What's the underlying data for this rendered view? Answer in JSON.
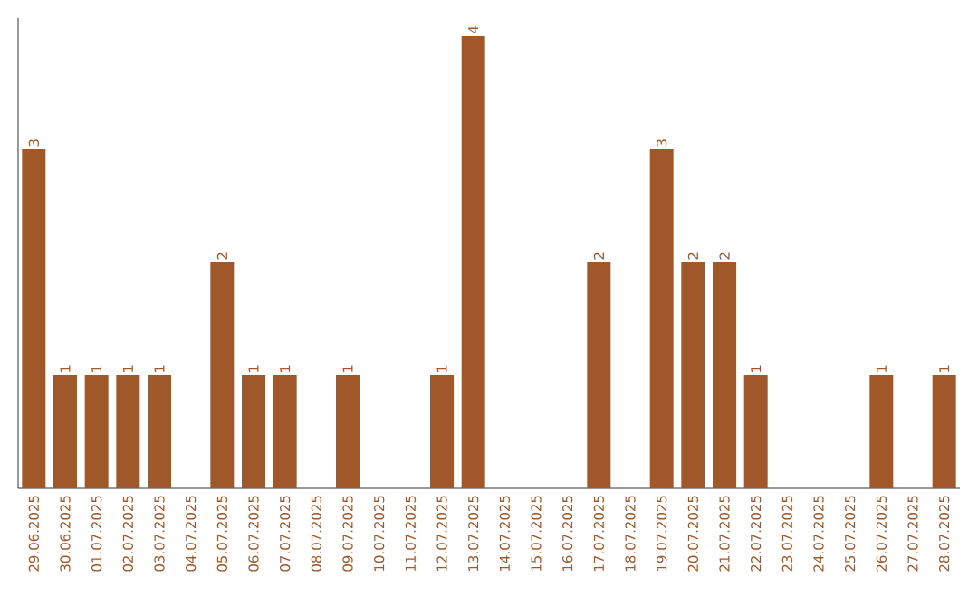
{
  "chart_data": {
    "type": "bar",
    "categories": [
      "29.06.2025",
      "30.06.2025",
      "01.07.2025",
      "02.07.2025",
      "03.07.2025",
      "04.07.2025",
      "05.07.2025",
      "06.07.2025",
      "07.07.2025",
      "08.07.2025",
      "09.07.2025",
      "10.07.2025",
      "11.07.2025",
      "12.07.2025",
      "13.07.2025",
      "14.07.2025",
      "15.07.2025",
      "16.07.2025",
      "17.07.2025",
      "18.07.2025",
      "19.07.2025",
      "20.07.2025",
      "21.07.2025",
      "22.07.2025",
      "23.07.2025",
      "24.07.2025",
      "25.07.2025",
      "26.07.2025",
      "27.07.2025",
      "28.07.2025"
    ],
    "values": [
      3,
      1,
      1,
      1,
      1,
      0,
      2,
      1,
      1,
      0,
      1,
      0,
      0,
      1,
      4,
      0,
      0,
      0,
      2,
      0,
      3,
      2,
      2,
      1,
      0,
      0,
      0,
      1,
      0,
      1
    ],
    "value_labels": [
      "3",
      "1",
      "1",
      "1",
      "1",
      null,
      "2",
      "1",
      "1",
      null,
      "1",
      null,
      null,
      "1",
      "4",
      null,
      null,
      null,
      "2",
      null,
      "3",
      "2",
      "2",
      "1",
      null,
      null,
      null,
      "1",
      null,
      "1"
    ],
    "color": "#a0582a"
  }
}
